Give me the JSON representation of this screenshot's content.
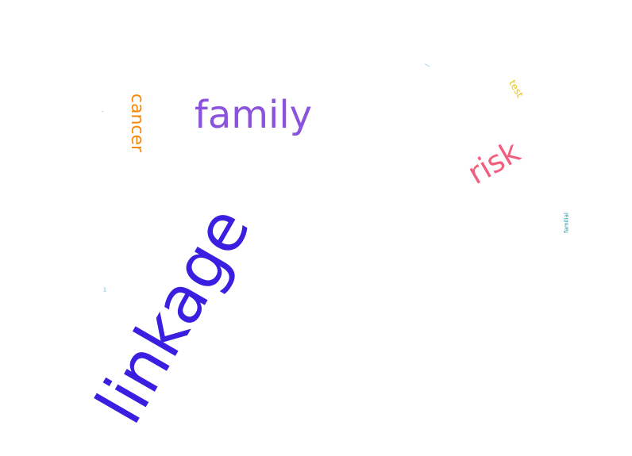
{
  "words": {
    "linkage": {
      "text": "linkage",
      "color": "#3a1fe0"
    },
    "family": {
      "text": "family",
      "color": "#8b52dc"
    },
    "risk": {
      "text": "risk",
      "color": "#f0607e"
    },
    "cancer": {
      "text": "cancer",
      "color": "#f5890a"
    },
    "test": {
      "text": "test",
      "color": "#e8c21a"
    },
    "familial": {
      "text": "familial",
      "color": "#1a8aa0"
    },
    "one": {
      "text": "1",
      "color": "#69b7e8"
    }
  },
  "marks": {
    "a": {
      "color": "#9fd4f0"
    },
    "b": {
      "color": "#d0d0d0"
    }
  }
}
